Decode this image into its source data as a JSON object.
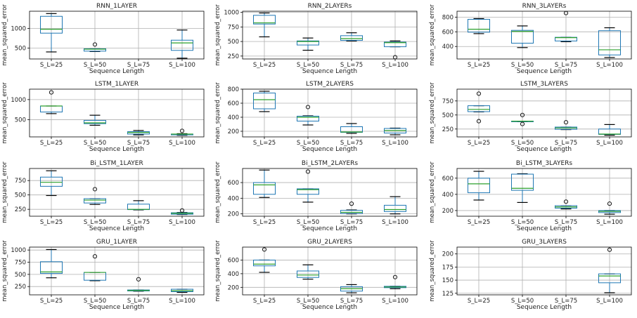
{
  "chart_data": [
    {
      "type": "box",
      "title": "RNN_1LAYER",
      "xlabel": "Sequence Length",
      "ylabel": "mean_squared_error",
      "categories": [
        "S_L=25",
        "S_L=50",
        "S_L=75",
        "S_L=100"
      ],
      "ylim": [
        220,
        1440
      ],
      "yticks": [
        500,
        1000
      ],
      "grid": true,
      "boxes": [
        {
          "whislo": 400,
          "q1": 880,
          "med": 980,
          "q3": 1310,
          "whishi": 1380,
          "fliers": []
        },
        {
          "whislo": 410,
          "q1": 420,
          "med": 470,
          "q3": 480,
          "whishi": 480,
          "fliers": [
            590
          ]
        },
        null,
        {
          "whislo": 240,
          "q1": 440,
          "med": 630,
          "q3": 700,
          "whishi": 960,
          "fliers": []
        }
      ]
    },
    {
      "type": "box",
      "title": "RNN_2LAYERs",
      "xlabel": "Sequence Length",
      "ylabel": "mean_squared_error",
      "categories": [
        "S_L=25",
        "S_L=50",
        "S_L=75",
        "S_L=100"
      ],
      "ylim": [
        200,
        1020
      ],
      "yticks": [
        250,
        500,
        750,
        1000
      ],
      "grid": true,
      "boxes": [
        {
          "whislo": 580,
          "q1": 800,
          "med": 820,
          "q3": 950,
          "whishi": 990,
          "fliers": []
        },
        {
          "whislo": 350,
          "q1": 440,
          "med": 500,
          "q3": 510,
          "whishi": 560,
          "fliers": []
        },
        {
          "whislo": 510,
          "q1": 520,
          "med": 550,
          "q3": 600,
          "whishi": 650,
          "fliers": []
        },
        {
          "whislo": 410,
          "q1": 410,
          "med": 480,
          "q3": 490,
          "whishi": 510,
          "fliers": [
            230
          ]
        }
      ]
    },
    {
      "type": "box",
      "title": "RNN_3LAYERs",
      "xlabel": "Sequence Length",
      "ylabel": "mean_squared_error",
      "categories": [
        "S_L=25",
        "S_L=50",
        "S_L=75",
        "S_L=100"
      ],
      "ylim": [
        230,
        880
      ],
      "yticks": [
        400,
        600,
        800
      ],
      "grid": true,
      "boxes": [
        {
          "whislo": 575,
          "q1": 595,
          "med": 635,
          "q3": 770,
          "whishi": 780,
          "fliers": []
        },
        {
          "whislo": 385,
          "q1": 445,
          "med": 605,
          "q3": 620,
          "whishi": 680,
          "fliers": []
        },
        {
          "whislo": 465,
          "q1": 475,
          "med": 520,
          "q3": 525,
          "whishi": 525,
          "fliers": [
            855
          ]
        },
        {
          "whislo": 250,
          "q1": 285,
          "med": 355,
          "q3": 615,
          "whishi": 655,
          "fliers": []
        }
      ]
    },
    {
      "type": "box",
      "title": "LSTM_1LAYER",
      "xlabel": "Sequence Length",
      "ylabel": "mean_squared_error",
      "categories": [
        "S_L=25",
        "S_L=50",
        "S_L=75",
        "S_L=100"
      ],
      "ylim": [
        70,
        1260
      ],
      "yticks": [
        500,
        1000
      ],
      "grid": true,
      "boxes": [
        {
          "whislo": 650,
          "q1": 690,
          "med": 840,
          "q3": 840,
          "whishi": 840,
          "fliers": [
            1180
          ]
        },
        {
          "whislo": 360,
          "q1": 400,
          "med": 420,
          "q3": 480,
          "whishi": 610,
          "fliers": []
        },
        {
          "whislo": 120,
          "q1": 140,
          "med": 180,
          "q3": 200,
          "whishi": 230,
          "fliers": []
        },
        {
          "whislo": 110,
          "q1": 120,
          "med": 140,
          "q3": 140,
          "whishi": 150,
          "fliers": [
            220
          ]
        }
      ]
    },
    {
      "type": "box",
      "title": "LSTM_2LAYERS",
      "xlabel": "Sequence Length",
      "ylabel": "mean_squared_error",
      "categories": [
        "S_L=25",
        "S_L=50",
        "S_L=75",
        "S_L=100"
      ],
      "ylim": [
        120,
        800
      ],
      "yticks": [
        200,
        400,
        600,
        800
      ],
      "grid": true,
      "boxes": [
        {
          "whislo": 480,
          "q1": 520,
          "med": 650,
          "q3": 745,
          "whishi": 770,
          "fliers": []
        },
        {
          "whislo": 290,
          "q1": 345,
          "med": 400,
          "q3": 415,
          "whishi": 420,
          "fliers": [
            545
          ]
        },
        {
          "whislo": 170,
          "q1": 185,
          "med": 190,
          "q3": 265,
          "whishi": 310,
          "fliers": []
        },
        {
          "whislo": 150,
          "q1": 175,
          "med": 210,
          "q3": 240,
          "whishi": 245,
          "fliers": []
        }
      ]
    },
    {
      "type": "box",
      "title": "LSTM_3LAYERS",
      "xlabel": "Sequence Length",
      "ylabel": "mean_squared_error",
      "categories": [
        "S_L=25",
        "S_L=50",
        "S_L=75",
        "S_L=100"
      ],
      "ylim": [
        110,
        960
      ],
      "yticks": [
        250,
        500,
        750
      ],
      "grid": true,
      "boxes": [
        {
          "whislo": 555,
          "q1": 560,
          "med": 600,
          "q3": 665,
          "whishi": 665,
          "fliers": [
            390,
            880
          ]
        },
        {
          "whislo": 380,
          "q1": 380,
          "med": 390,
          "q3": 390,
          "whishi": 390,
          "fliers": [
            340,
            500
          ]
        },
        {
          "whislo": 240,
          "q1": 245,
          "med": 270,
          "q3": 285,
          "whishi": 285,
          "fliers": [
            370
          ]
        },
        {
          "whislo": 140,
          "q1": 155,
          "med": 160,
          "q3": 250,
          "whishi": 330,
          "fliers": []
        }
      ]
    },
    {
      "type": "box",
      "title": "Bi_LSTM_1LAYER",
      "xlabel": "Sequence Length",
      "ylabel": "mean_squared_error",
      "categories": [
        "S_L=25",
        "S_L=50",
        "S_L=75",
        "S_L=100"
      ],
      "ylim": [
        130,
        960
      ],
      "yticks": [
        250,
        500,
        750
      ],
      "grid": true,
      "boxes": [
        {
          "whislo": 490,
          "q1": 650,
          "med": 720,
          "q3": 810,
          "whishi": 920,
          "fliers": []
        },
        {
          "whislo": 335,
          "q1": 360,
          "med": 410,
          "q3": 435,
          "whishi": 435,
          "fliers": [
            600
          ]
        },
        {
          "whislo": 240,
          "q1": 245,
          "med": 250,
          "q3": 340,
          "whishi": 400,
          "fliers": []
        },
        {
          "whislo": 160,
          "q1": 165,
          "med": 180,
          "q3": 190,
          "whishi": 195,
          "fliers": [
            230
          ]
        }
      ]
    },
    {
      "type": "box",
      "title": "Bi_LSTM_2LAYERs",
      "xlabel": "Sequence Length",
      "ylabel": "mean_squared_error",
      "categories": [
        "S_L=25",
        "S_L=50",
        "S_L=75",
        "S_L=100"
      ],
      "ylim": [
        170,
        780
      ],
      "yticks": [
        200,
        400,
        600
      ],
      "grid": true,
      "boxes": [
        {
          "whislo": 410,
          "q1": 450,
          "med": 570,
          "q3": 600,
          "whishi": 760,
          "fliers": []
        },
        {
          "whislo": 350,
          "q1": 450,
          "med": 510,
          "q3": 520,
          "whishi": 520,
          "fliers": [
            740
          ]
        },
        {
          "whislo": 200,
          "q1": 205,
          "med": 220,
          "q3": 245,
          "whishi": 250,
          "fliers": [
            330
          ]
        },
        {
          "whislo": 200,
          "q1": 230,
          "med": 255,
          "q3": 310,
          "whishi": 420,
          "fliers": []
        }
      ]
    },
    {
      "type": "box",
      "title": "Bi_LSTM_3LAYERs",
      "xlabel": "Sequence Length",
      "ylabel": "mean_squared_error",
      "categories": [
        "S_L=25",
        "S_L=50",
        "S_L=75",
        "S_L=100"
      ],
      "ylim": [
        130,
        720
      ],
      "yticks": [
        200,
        400,
        600
      ],
      "grid": true,
      "boxes": [
        {
          "whislo": 330,
          "q1": 420,
          "med": 530,
          "q3": 600,
          "whishi": 685,
          "fliers": []
        },
        {
          "whislo": 300,
          "q1": 450,
          "med": 475,
          "q3": 650,
          "whishi": 655,
          "fliers": []
        },
        {
          "whislo": 220,
          "q1": 230,
          "med": 245,
          "q3": 260,
          "whishi": 260,
          "fliers": [
            310
          ]
        },
        {
          "whislo": 155,
          "q1": 175,
          "med": 190,
          "q3": 200,
          "whishi": 200,
          "fliers": [
            285
          ]
        }
      ]
    },
    {
      "type": "box",
      "title": "GRU_1LAYER",
      "xlabel": "Sequence Length",
      "ylabel": "mean_squared_error",
      "categories": [
        "S_L=25",
        "S_L=50",
        "S_L=75",
        "S_L=100"
      ],
      "ylim": [
        80,
        1060
      ],
      "yticks": [
        250,
        500,
        750,
        1000
      ],
      "grid": true,
      "boxes": [
        {
          "whislo": 430,
          "q1": 520,
          "med": 550,
          "q3": 760,
          "whishi": 1010,
          "fliers": []
        },
        {
          "whislo": 370,
          "q1": 380,
          "med": 540,
          "q3": 540,
          "whishi": 540,
          "fliers": [
            870
          ]
        },
        {
          "whislo": 155,
          "q1": 160,
          "med": 170,
          "q3": 180,
          "whishi": 180,
          "fliers": [
            400
          ]
        },
        {
          "whislo": 130,
          "q1": 145,
          "med": 165,
          "q3": 195,
          "whishi": 195,
          "fliers": []
        }
      ]
    },
    {
      "type": "box",
      "title": "GRU_2LAYERS",
      "xlabel": "Sequence Length",
      "ylabel": "mean_squared_error",
      "categories": [
        "S_L=25",
        "S_L=50",
        "S_L=75",
        "S_L=100"
      ],
      "ylim": [
        90,
        790
      ],
      "yticks": [
        200,
        400,
        600
      ],
      "grid": true,
      "boxes": [
        {
          "whislo": 420,
          "q1": 515,
          "med": 540,
          "q3": 600,
          "whishi": 600,
          "fliers": [
            755
          ]
        },
        {
          "whislo": 320,
          "q1": 345,
          "med": 380,
          "q3": 440,
          "whishi": 530,
          "fliers": []
        },
        {
          "whislo": 120,
          "q1": 145,
          "med": 180,
          "q3": 210,
          "whishi": 240,
          "fliers": []
        },
        {
          "whislo": 180,
          "q1": 195,
          "med": 205,
          "q3": 215,
          "whishi": 215,
          "fliers": [
            350
          ]
        }
      ]
    },
    {
      "type": "box",
      "title": "GRU_3LAYERS",
      "xlabel": "Sequence Length",
      "ylabel": "mean_squared_error",
      "categories": [
        "S_L=25",
        "S_L=50",
        "S_L=75",
        "S_L=100"
      ],
      "ylim": [
        122,
        213
      ],
      "yticks": [
        125,
        150,
        175,
        200
      ],
      "grid": true,
      "boxes": [
        null,
        null,
        null,
        {
          "whislo": 126,
          "q1": 145,
          "med": 158,
          "q3": 162,
          "whishi": 162,
          "fliers": [
            208
          ]
        }
      ]
    }
  ],
  "colors": {
    "box": "#1f77b4",
    "median": "#2ca02c",
    "whisker_cap": "#000000",
    "grid": "#b0b0b0"
  }
}
